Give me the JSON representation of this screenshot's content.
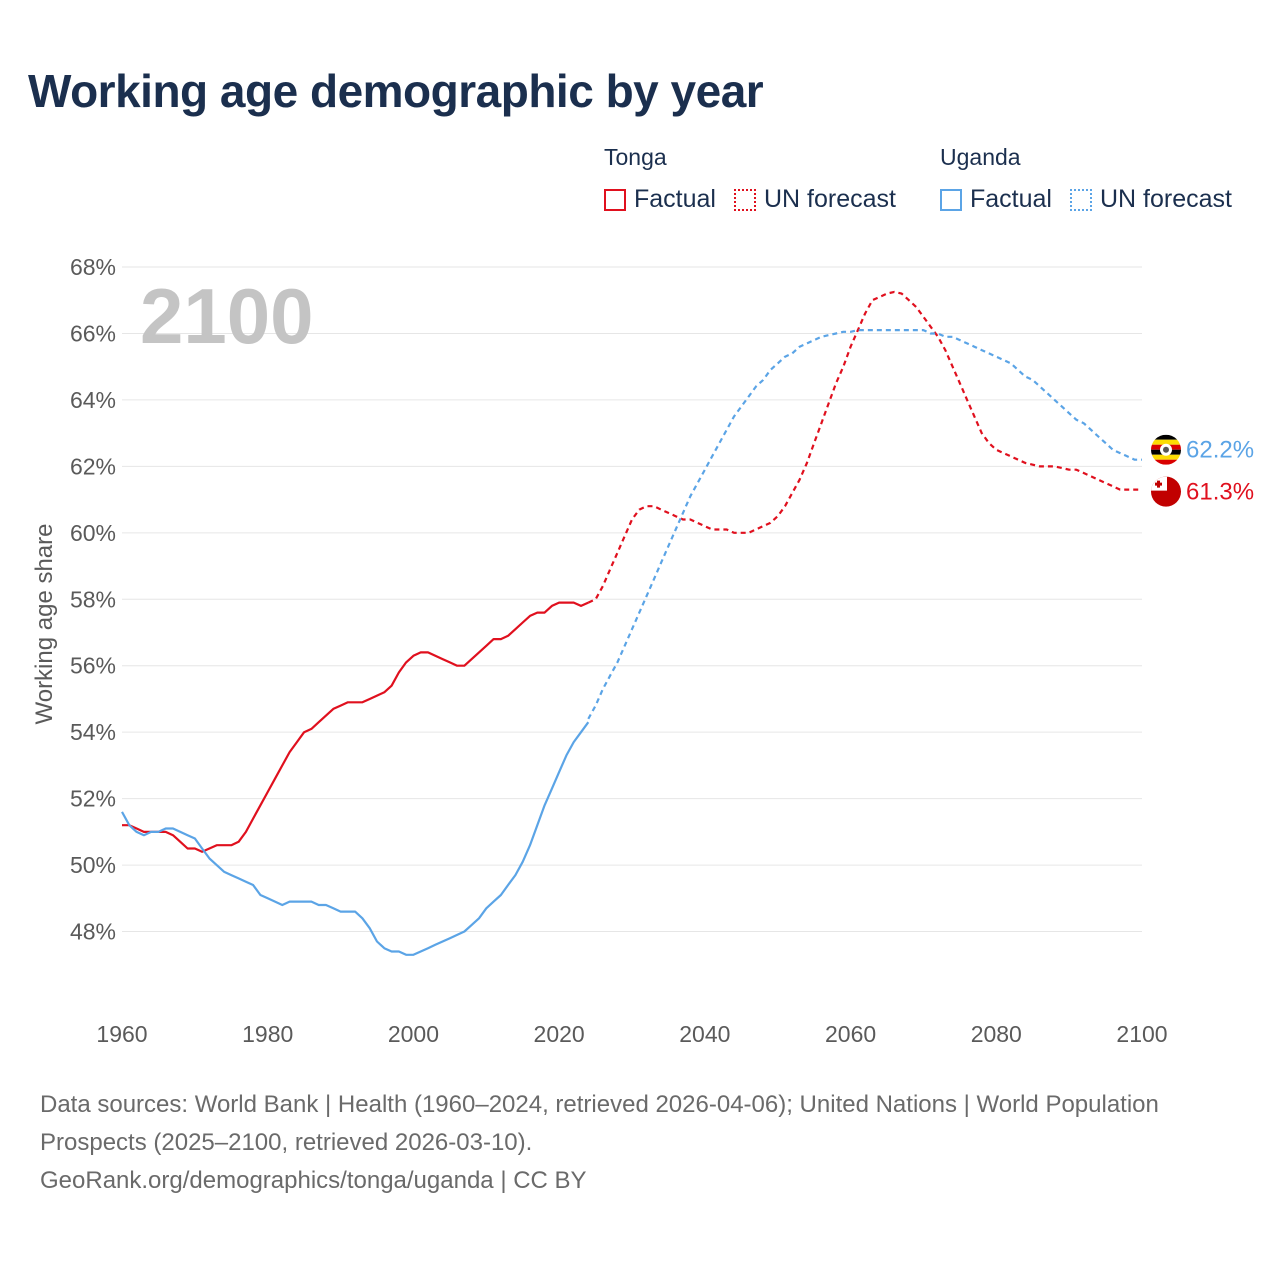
{
  "title": "Working age demographic by year",
  "legend": {
    "tonga": {
      "name": "Tonga",
      "factual": "Factual",
      "forecast": "UN forecast"
    },
    "uganda": {
      "name": "Uganda",
      "factual": "Factual",
      "forecast": "UN forecast"
    }
  },
  "year_overlay": "2100",
  "footer": {
    "sources": "Data sources: World Bank | Health (1960–2024, retrieved 2026-04-06); United Nations | World Population Prospects (2025–2100, retrieved 2026-03-10).",
    "credit": "GeoRank.org/demographics/tonga/uganda | CC BY"
  },
  "colors": {
    "tonga": "#e0101e",
    "uganda": "#5ba4e6",
    "grid": "#e6e6e6",
    "title": "#1b2f4e"
  },
  "chart_data": {
    "type": "line",
    "title": "Working age demographic by year",
    "xlabel": "",
    "ylabel": "Working age share",
    "xlim": [
      1960,
      2100
    ],
    "ylim": [
      46,
      68
    ],
    "x_ticks": [
      1960,
      1980,
      2000,
      2020,
      2040,
      2060,
      2080,
      2100
    ],
    "x_tick_labels": [
      "1960",
      "1980",
      "2000",
      "2020",
      "2040",
      "2060",
      "2080",
      "2100"
    ],
    "y_ticks": [
      48,
      50,
      52,
      54,
      56,
      58,
      60,
      62,
      64,
      66,
      68
    ],
    "y_tick_labels": [
      "48%",
      "50%",
      "52%",
      "54%",
      "56%",
      "58%",
      "60%",
      "62%",
      "64%",
      "66%",
      "68%"
    ],
    "grid": true,
    "series": [
      {
        "name": "Tonga",
        "part": "Factual",
        "style": "solid",
        "color": "#e0101e",
        "x": [
          1960,
          1961,
          1962,
          1963,
          1964,
          1965,
          1966,
          1967,
          1968,
          1969,
          1970,
          1971,
          1972,
          1973,
          1974,
          1975,
          1976,
          1977,
          1978,
          1979,
          1980,
          1981,
          1982,
          1983,
          1984,
          1985,
          1986,
          1987,
          1988,
          1989,
          1990,
          1991,
          1992,
          1993,
          1994,
          1995,
          1996,
          1997,
          1998,
          1999,
          2000,
          2001,
          2002,
          2003,
          2004,
          2005,
          2006,
          2007,
          2008,
          2009,
          2010,
          2011,
          2012,
          2013,
          2014,
          2015,
          2016,
          2017,
          2018,
          2019,
          2020,
          2021,
          2022,
          2023,
          2024
        ],
        "y": [
          51.2,
          51.2,
          51.1,
          51.0,
          51.0,
          51.0,
          51.0,
          50.9,
          50.7,
          50.5,
          50.5,
          50.4,
          50.5,
          50.6,
          50.6,
          50.6,
          50.7,
          51.0,
          51.4,
          51.8,
          52.2,
          52.6,
          53.0,
          53.4,
          53.7,
          54.0,
          54.1,
          54.3,
          54.5,
          54.7,
          54.8,
          54.9,
          54.9,
          54.9,
          55.0,
          55.1,
          55.2,
          55.4,
          55.8,
          56.1,
          56.3,
          56.4,
          56.4,
          56.3,
          56.2,
          56.1,
          56.0,
          56.0,
          56.2,
          56.4,
          56.6,
          56.8,
          56.8,
          56.9,
          57.1,
          57.3,
          57.5,
          57.6,
          57.6,
          57.8,
          57.9,
          57.9,
          57.9,
          57.8,
          57.9
        ]
      },
      {
        "name": "Tonga",
        "part": "UN forecast",
        "style": "dotted",
        "color": "#e0101e",
        "x": [
          2024,
          2025,
          2026,
          2027,
          2028,
          2029,
          2030,
          2031,
          2032,
          2033,
          2034,
          2035,
          2036,
          2037,
          2038,
          2039,
          2040,
          2041,
          2042,
          2043,
          2044,
          2045,
          2046,
          2047,
          2048,
          2049,
          2050,
          2051,
          2052,
          2053,
          2054,
          2055,
          2056,
          2057,
          2058,
          2059,
          2060,
          2061,
          2062,
          2063,
          2064,
          2065,
          2066,
          2067,
          2068,
          2069,
          2070,
          2071,
          2072,
          2073,
          2074,
          2075,
          2076,
          2077,
          2078,
          2079,
          2080,
          2081,
          2082,
          2083,
          2084,
          2085,
          2086,
          2087,
          2088,
          2089,
          2090,
          2091,
          2092,
          2093,
          2094,
          2095,
          2096,
          2097,
          2098,
          2099,
          2100
        ],
        "y": [
          57.9,
          58.0,
          58.4,
          58.9,
          59.4,
          59.9,
          60.4,
          60.7,
          60.8,
          60.8,
          60.7,
          60.6,
          60.5,
          60.4,
          60.4,
          60.3,
          60.2,
          60.1,
          60.1,
          60.1,
          60.0,
          60.0,
          60.0,
          60.1,
          60.2,
          60.3,
          60.5,
          60.8,
          61.2,
          61.6,
          62.1,
          62.7,
          63.3,
          63.9,
          64.5,
          65.0,
          65.6,
          66.1,
          66.6,
          67.0,
          67.1,
          67.2,
          67.25,
          67.2,
          67.0,
          66.8,
          66.5,
          66.2,
          65.9,
          65.5,
          65.0,
          64.5,
          64.0,
          63.5,
          63.0,
          62.7,
          62.5,
          62.4,
          62.3,
          62.2,
          62.1,
          62.05,
          62.0,
          62.0,
          62.0,
          61.95,
          61.9,
          61.9,
          61.8,
          61.7,
          61.6,
          61.5,
          61.4,
          61.3,
          61.3,
          61.3,
          61.3
        ]
      },
      {
        "name": "Uganda",
        "part": "Factual",
        "style": "solid",
        "color": "#5ba4e6",
        "x": [
          1960,
          1961,
          1962,
          1963,
          1964,
          1965,
          1966,
          1967,
          1968,
          1969,
          1970,
          1971,
          1972,
          1973,
          1974,
          1975,
          1976,
          1977,
          1978,
          1979,
          1980,
          1981,
          1982,
          1983,
          1984,
          1985,
          1986,
          1987,
          1988,
          1989,
          1990,
          1991,
          1992,
          1993,
          1994,
          1995,
          1996,
          1997,
          1998,
          1999,
          2000,
          2001,
          2002,
          2003,
          2004,
          2005,
          2006,
          2007,
          2008,
          2009,
          2010,
          2011,
          2012,
          2013,
          2014,
          2015,
          2016,
          2017,
          2018,
          2019,
          2020,
          2021,
          2022,
          2023,
          2024
        ],
        "y": [
          51.6,
          51.2,
          51.0,
          50.9,
          51.0,
          51.0,
          51.1,
          51.1,
          51.0,
          50.9,
          50.8,
          50.5,
          50.2,
          50.0,
          49.8,
          49.7,
          49.6,
          49.5,
          49.4,
          49.1,
          49.0,
          48.9,
          48.8,
          48.9,
          48.9,
          48.9,
          48.9,
          48.8,
          48.8,
          48.7,
          48.6,
          48.6,
          48.6,
          48.4,
          48.1,
          47.7,
          47.5,
          47.4,
          47.4,
          47.3,
          47.3,
          47.4,
          47.5,
          47.6,
          47.7,
          47.8,
          47.9,
          48.0,
          48.2,
          48.4,
          48.7,
          48.9,
          49.1,
          49.4,
          49.7,
          50.1,
          50.6,
          51.2,
          51.8,
          52.3,
          52.8,
          53.3,
          53.7,
          54.0,
          54.3
        ]
      },
      {
        "name": "Uganda",
        "part": "UN forecast",
        "style": "dotted",
        "color": "#5ba4e6",
        "x": [
          2024,
          2025,
          2026,
          2027,
          2028,
          2029,
          2030,
          2031,
          2032,
          2033,
          2034,
          2035,
          2036,
          2037,
          2038,
          2039,
          2040,
          2041,
          2042,
          2043,
          2044,
          2045,
          2046,
          2047,
          2048,
          2049,
          2050,
          2051,
          2052,
          2053,
          2054,
          2055,
          2056,
          2057,
          2058,
          2059,
          2060,
          2061,
          2062,
          2063,
          2064,
          2065,
          2066,
          2067,
          2068,
          2069,
          2070,
          2071,
          2072,
          2073,
          2074,
          2075,
          2076,
          2077,
          2078,
          2079,
          2080,
          2081,
          2082,
          2083,
          2084,
          2085,
          2086,
          2087,
          2088,
          2089,
          2090,
          2091,
          2092,
          2093,
          2094,
          2095,
          2096,
          2097,
          2098,
          2099,
          2100
        ],
        "y": [
          54.4,
          54.8,
          55.3,
          55.7,
          56.1,
          56.6,
          57.1,
          57.6,
          58.1,
          58.6,
          59.1,
          59.6,
          60.1,
          60.6,
          61.1,
          61.5,
          61.9,
          62.3,
          62.7,
          63.1,
          63.5,
          63.8,
          64.1,
          64.4,
          64.6,
          64.9,
          65.1,
          65.3,
          65.4,
          65.6,
          65.7,
          65.8,
          65.9,
          65.95,
          66.0,
          66.05,
          66.05,
          66.1,
          66.1,
          66.1,
          66.1,
          66.1,
          66.1,
          66.1,
          66.1,
          66.1,
          66.1,
          66.0,
          66.0,
          65.9,
          65.9,
          65.8,
          65.7,
          65.6,
          65.5,
          65.4,
          65.3,
          65.2,
          65.1,
          64.9,
          64.7,
          64.6,
          64.4,
          64.2,
          64.0,
          63.8,
          63.6,
          63.4,
          63.3,
          63.1,
          62.9,
          62.7,
          62.5,
          62.4,
          62.3,
          62.2,
          62.2
        ]
      }
    ],
    "end_labels": [
      {
        "series": "Uganda",
        "value": 62.2,
        "text": "62.2%",
        "flag": "uganda-flag"
      },
      {
        "series": "Tonga",
        "value": 61.3,
        "text": "61.3%",
        "flag": "tonga-flag"
      }
    ]
  }
}
